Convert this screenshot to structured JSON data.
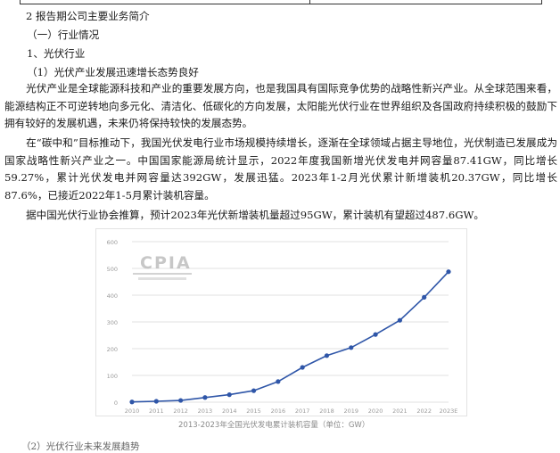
{
  "section": {
    "heading": "2 报告期公司主要业务简介",
    "sub1": "（一）行业情况",
    "sub2": "1、光伏行业",
    "sub3": "（1）光伏产业发展迅速增长态势良好"
  },
  "paragraphs": [
    "光伏产业是全球能源科技和产业的重要发展方向，也是我国具有国际竞争优势的战略性新兴产业。从全球范围来看，能源结构正不可逆转地向多元化、清洁化、低碳化的方向发展，太阳能光伏行业在世界组织及各国政府持续积极的鼓励下拥有较好的发展机遇，未来仍将保持较快的发展态势。",
    "在“碳中和”目标推动下，我国光伏发电行业市场规模持续增长，逐渐在全球领域占据主导地位，光伏制造已发展成为国家战略性新兴产业之一。中国国家能源局统计显示，2022年度我国新增光伏发电并网容量87.41GW，同比增长59.27%，累计光伏发电并网容量达392GW，发展迅猛。2023年1-2月光伏累计新增装机20.37GW，同比增长87.6%，已接近2022年1-5月累计装机容量。",
    "据中国光伏行业协会推算，预计2023年光伏新增装机量超过95GW，累计装机有望超过487.6GW。"
  ],
  "chart_data": {
    "type": "line",
    "title": "",
    "categories": [
      "2010",
      "2011",
      "2012",
      "2013",
      "2014",
      "2015",
      "2016",
      "2017",
      "2018",
      "2019",
      "2020",
      "2021",
      "2022",
      "2023E"
    ],
    "series": [
      {
        "values": [
          0.9,
          3.3,
          6.5,
          17.5,
          28,
          43,
          77,
          130,
          174,
          204,
          253,
          306,
          392,
          487.6
        ]
      }
    ],
    "ylim": [
      0,
      600
    ],
    "ytick_labels": [
      "0",
      "100",
      "200",
      "300",
      "400",
      "500",
      "600"
    ],
    "xlabel": "",
    "ylabel": "",
    "grid": true,
    "color": "#2f56a8",
    "watermark": "CPIA",
    "caption": "2013-2023年全国光伏发电累计装机容量（单位：GW）"
  },
  "footer": {
    "text": "（2）光伏行业未来发展趋势"
  }
}
